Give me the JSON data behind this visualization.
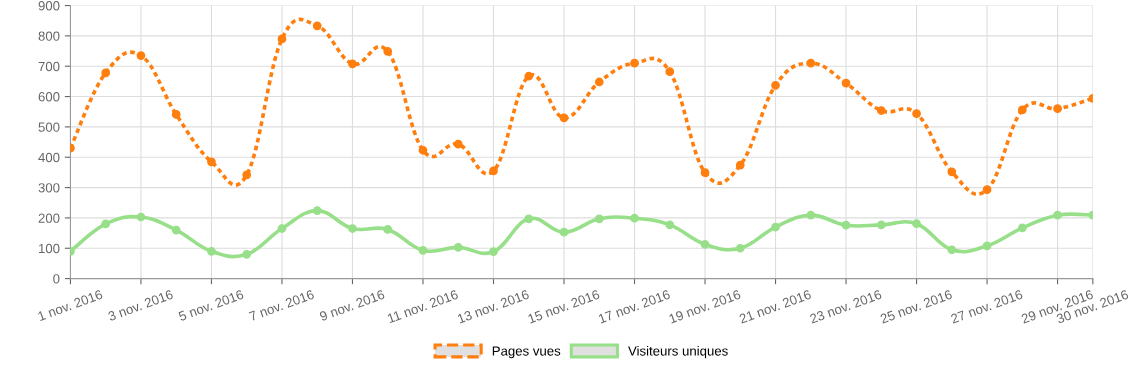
{
  "chart_data": {
    "type": "line",
    "x": [
      "2016-11-01",
      "2016-11-02",
      "2016-11-03",
      "2016-11-04",
      "2016-11-05",
      "2016-11-06",
      "2016-11-07",
      "2016-11-08",
      "2016-11-09",
      "2016-11-10",
      "2016-11-11",
      "2016-11-12",
      "2016-11-13",
      "2016-11-14",
      "2016-11-15",
      "2016-11-16",
      "2016-11-17",
      "2016-11-18",
      "2016-11-19",
      "2016-11-20",
      "2016-11-21",
      "2016-11-22",
      "2016-11-23",
      "2016-11-24",
      "2016-11-25",
      "2016-11-26",
      "2016-11-27",
      "2016-11-28",
      "2016-11-29",
      "2016-11-30"
    ],
    "series": [
      {
        "name": "Pages vues",
        "color": "#ff7f0e",
        "line_style": "dashed",
        "values": [
          430,
          678,
          735,
          541,
          385,
          342,
          790,
          833,
          708,
          749,
          423,
          443,
          355,
          667,
          530,
          648,
          710,
          682,
          349,
          374,
          637,
          710,
          644,
          554,
          544,
          352,
          293,
          556,
          560,
          594
        ]
      },
      {
        "name": "Visiteurs uniques",
        "color": "#98df8a",
        "line_style": "solid",
        "values": [
          90,
          180,
          203,
          160,
          90,
          80,
          165,
          224,
          165,
          162,
          93,
          103,
          89,
          197,
          153,
          197,
          199,
          177,
          113,
          100,
          170,
          209,
          176,
          177,
          181,
          95,
          108,
          167,
          209,
          209
        ]
      }
    ],
    "xlim": [
      "2016-11-01",
      "2016-11-30"
    ],
    "xticks": [
      {
        "value": "2016-11-01",
        "label": "1 nov. 2016"
      },
      {
        "value": "2016-11-03",
        "label": "3 nov. 2016"
      },
      {
        "value": "2016-11-05",
        "label": "5 nov. 2016"
      },
      {
        "value": "2016-11-07",
        "label": "7 nov. 2016"
      },
      {
        "value": "2016-11-09",
        "label": "9 nov. 2016"
      },
      {
        "value": "2016-11-11",
        "label": "11 nov. 2016"
      },
      {
        "value": "2016-11-13",
        "label": "13 nov. 2016"
      },
      {
        "value": "2016-11-15",
        "label": "15 nov. 2016"
      },
      {
        "value": "2016-11-17",
        "label": "17 nov. 2016"
      },
      {
        "value": "2016-11-19",
        "label": "19 nov. 2016"
      },
      {
        "value": "2016-11-21",
        "label": "21 nov. 2016"
      },
      {
        "value": "2016-11-23",
        "label": "23 nov. 2016"
      },
      {
        "value": "2016-11-25",
        "label": "25 nov. 2016"
      },
      {
        "value": "2016-11-27",
        "label": "27 nov. 2016"
      },
      {
        "value": "2016-11-29",
        "label": "29 nov. 2016"
      },
      {
        "value": "2016-11-30",
        "label": "30 nov. 2016"
      }
    ],
    "ylim": [
      0,
      900
    ],
    "yticks": [
      0,
      100,
      200,
      300,
      400,
      500,
      600,
      700,
      800,
      900
    ],
    "grid": true,
    "legend": "bottom",
    "marker": "circle"
  }
}
